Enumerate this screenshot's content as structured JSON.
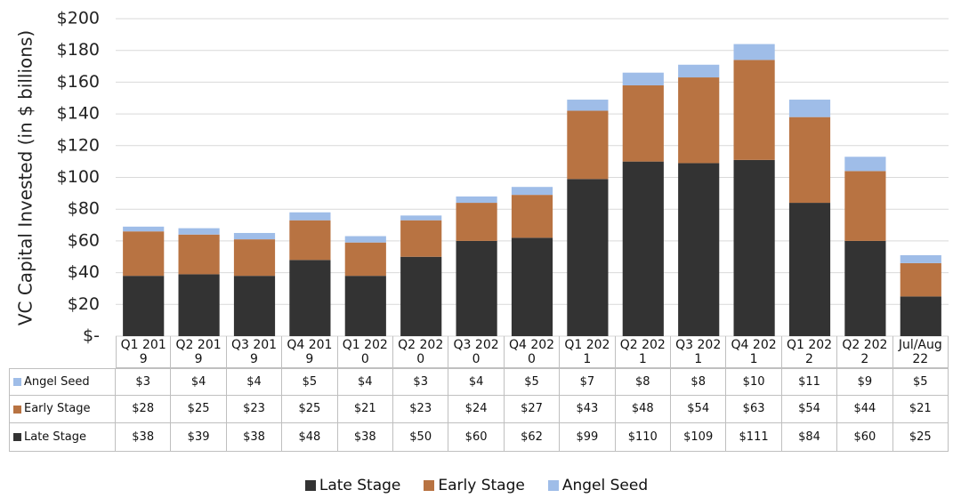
{
  "chart_data": {
    "type": "stacked_bar",
    "y_axis_label": "VC Capital Invested (in $ billions)",
    "categories": [
      "Q1 2019",
      "Q2 2019",
      "Q3 2019",
      "Q4 2019",
      "Q1 2020",
      "Q2 2020",
      "Q3 2020",
      "Q4 2020",
      "Q1 2021",
      "Q2 2021",
      "Q3 2021",
      "Q4 2021",
      "Q1 2022",
      "Q2 2022",
      "Jul/Aug 22"
    ],
    "series": [
      {
        "name": "Late Stage",
        "color": "#333333",
        "values": [
          38,
          39,
          38,
          48,
          38,
          50,
          60,
          62,
          99,
          110,
          109,
          111,
          84,
          60,
          25
        ],
        "value_labels": [
          "$38",
          "$39",
          "$38",
          "$48",
          "$38",
          "$50",
          "$60",
          "$62",
          "$99",
          "$110",
          "$109",
          "$111",
          "$84",
          "$60",
          "$25"
        ]
      },
      {
        "name": "Early Stage",
        "color": "#b87342",
        "values": [
          28,
          25,
          23,
          25,
          21,
          23,
          24,
          27,
          43,
          48,
          54,
          63,
          54,
          44,
          21
        ],
        "value_labels": [
          "$28",
          "$25",
          "$23",
          "$25",
          "$21",
          "$23",
          "$24",
          "$27",
          "$43",
          "$48",
          "$54",
          "$63",
          "$54",
          "$44",
          "$21"
        ]
      },
      {
        "name": "Angel Seed",
        "color": "#9fbde8",
        "values": [
          3,
          4,
          4,
          5,
          4,
          3,
          4,
          5,
          7,
          8,
          8,
          10,
          11,
          9,
          5
        ],
        "value_labels": [
          "$3",
          "$4",
          "$4",
          "$5",
          "$4",
          "$3",
          "$4",
          "$5",
          "$7",
          "$8",
          "$8",
          "$10",
          "$11",
          "$9",
          "$5"
        ]
      }
    ],
    "ylim": [
      0,
      200
    ],
    "yticks": [
      {
        "value": 0,
        "label": "$-"
      },
      {
        "value": 20,
        "label": "$20"
      },
      {
        "value": 40,
        "label": "$40"
      },
      {
        "value": 60,
        "label": "$60"
      },
      {
        "value": 80,
        "label": "$80"
      },
      {
        "value": 100,
        "label": "$100"
      },
      {
        "value": 120,
        "label": "$120"
      },
      {
        "value": 140,
        "label": "$140"
      },
      {
        "value": 160,
        "label": "$160"
      },
      {
        "value": 180,
        "label": "$180"
      },
      {
        "value": 200,
        "label": "$200"
      }
    ],
    "grid": true
  }
}
